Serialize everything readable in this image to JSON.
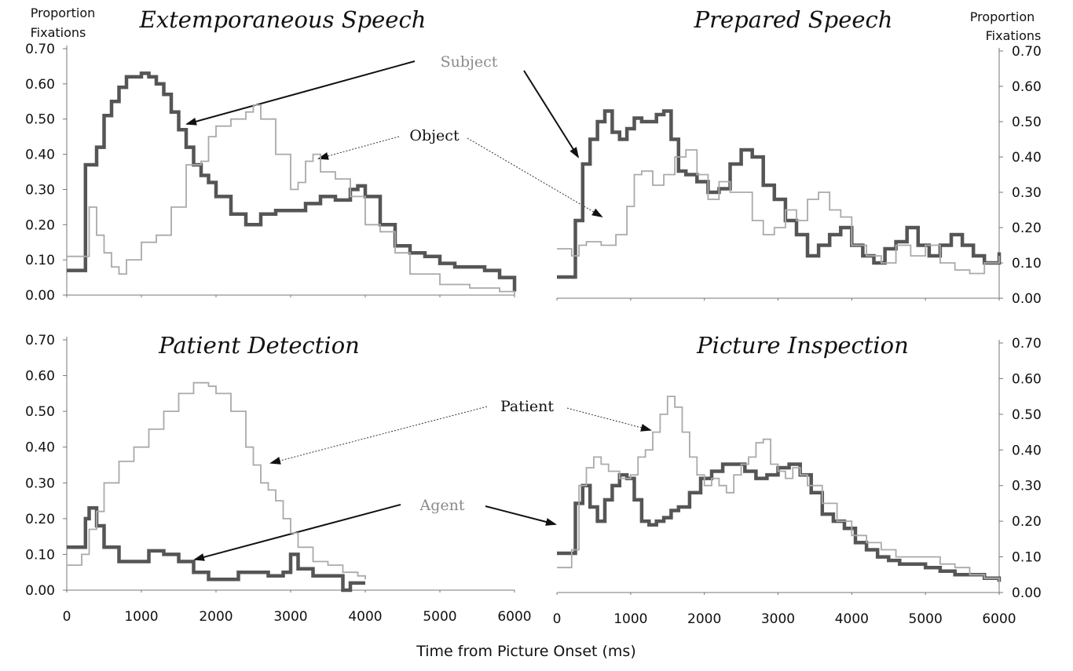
{
  "chart_data": {
    "type": "line",
    "xlabel": "Time from Picture Onset (ms)",
    "ylabel": "Proportion Fixations",
    "ylim": [
      0,
      0.7
    ],
    "yticks": [
      "0.00",
      "0.10",
      "0.20",
      "0.30",
      "0.40",
      "0.50",
      "0.60",
      "0.70"
    ],
    "xticks": [
      "0",
      "1000",
      "2000",
      "3000",
      "4000",
      "5000",
      "6000"
    ],
    "panels": [
      {
        "id": "extemporaneous",
        "title": "Extemporaneous Speech",
        "xlim": [
          0,
          6000
        ],
        "annotations": [
          "Subject",
          "Object"
        ],
        "series": [
          {
            "name": "Subject",
            "color": "#555555",
            "x": [
              0,
              150,
              250,
              400,
              500,
              600,
              700,
              800,
              900,
              1000,
              1100,
              1200,
              1300,
              1400,
              1500,
              1600,
              1700,
              1800,
              1900,
              2000,
              2200,
              2400,
              2600,
              2800,
              3000,
              3200,
              3400,
              3600,
              3800,
              3900,
              4000,
              4200,
              4400,
              4600,
              4800,
              5000,
              5200,
              5400,
              5600,
              5800,
              6000
            ],
            "y": [
              0.07,
              0.07,
              0.37,
              0.42,
              0.51,
              0.55,
              0.59,
              0.62,
              0.62,
              0.63,
              0.62,
              0.6,
              0.57,
              0.52,
              0.47,
              0.42,
              0.37,
              0.34,
              0.32,
              0.28,
              0.23,
              0.2,
              0.23,
              0.24,
              0.24,
              0.26,
              0.28,
              0.27,
              0.3,
              0.31,
              0.28,
              0.2,
              0.14,
              0.12,
              0.11,
              0.09,
              0.08,
              0.08,
              0.07,
              0.05,
              0.01
            ]
          },
          {
            "name": "Object",
            "color": "#aaaaaa",
            "x": [
              0,
              200,
              300,
              400,
              500,
              600,
              700,
              800,
              1000,
              1200,
              1400,
              1600,
              1800,
              1900,
              2000,
              2200,
              2400,
              2500,
              2600,
              2800,
              3000,
              3100,
              3200,
              3300,
              3400,
              3600,
              3800,
              4000,
              4200,
              4400,
              4600,
              5000,
              5400,
              5800,
              6000
            ],
            "y": [
              0.11,
              0.11,
              0.25,
              0.17,
              0.12,
              0.08,
              0.06,
              0.1,
              0.15,
              0.17,
              0.25,
              0.37,
              0.38,
              0.45,
              0.48,
              0.5,
              0.52,
              0.54,
              0.5,
              0.4,
              0.3,
              0.32,
              0.38,
              0.4,
              0.35,
              0.33,
              0.28,
              0.2,
              0.18,
              0.12,
              0.06,
              0.03,
              0.02,
              0.01,
              0.0
            ]
          }
        ]
      },
      {
        "id": "prepared",
        "title": "Prepared Speech",
        "xlim": [
          0,
          6000
        ],
        "annotations": [],
        "series": [
          {
            "name": "Subject",
            "color": "#555555",
            "x": [
              0,
              150,
              250,
              350,
              450,
              550,
              650,
              750,
              850,
              950,
              1050,
              1150,
              1250,
              1350,
              1450,
              1550,
              1650,
              1750,
              1900,
              2050,
              2200,
              2350,
              2500,
              2650,
              2800,
              2950,
              3100,
              3250,
              3400,
              3550,
              3700,
              3850,
              4000,
              4150,
              4300,
              4450,
              4600,
              4750,
              4900,
              5050,
              5200,
              5350,
              5500,
              5650,
              5800,
              6000
            ],
            "y": [
              0.06,
              0.06,
              0.22,
              0.38,
              0.45,
              0.5,
              0.53,
              0.47,
              0.45,
              0.48,
              0.51,
              0.5,
              0.5,
              0.52,
              0.53,
              0.45,
              0.36,
              0.35,
              0.33,
              0.3,
              0.31,
              0.38,
              0.42,
              0.4,
              0.32,
              0.28,
              0.22,
              0.18,
              0.12,
              0.15,
              0.18,
              0.2,
              0.15,
              0.12,
              0.1,
              0.14,
              0.16,
              0.2,
              0.15,
              0.12,
              0.15,
              0.18,
              0.15,
              0.12,
              0.1,
              0.13
            ]
          },
          {
            "name": "Object",
            "color": "#aaaaaa",
            "x": [
              0,
              100,
              200,
              300,
              400,
              600,
              800,
              950,
              1050,
              1150,
              1300,
              1450,
              1600,
              1750,
              1900,
              2050,
              2200,
              2350,
              2500,
              2650,
              2800,
              2950,
              3100,
              3250,
              3400,
              3550,
              3700,
              3850,
              4000,
              4200,
              4400,
              4600,
              4800,
              5000,
              5200,
              5400,
              5600,
              5800,
              6000
            ],
            "y": [
              0.14,
              0.14,
              0.12,
              0.15,
              0.16,
              0.15,
              0.18,
              0.26,
              0.35,
              0.36,
              0.32,
              0.35,
              0.4,
              0.42,
              0.35,
              0.28,
              0.33,
              0.3,
              0.3,
              0.22,
              0.18,
              0.2,
              0.25,
              0.22,
              0.28,
              0.3,
              0.25,
              0.23,
              0.15,
              0.12,
              0.1,
              0.15,
              0.12,
              0.15,
              0.1,
              0.08,
              0.07,
              0.1,
              0.12
            ]
          }
        ]
      },
      {
        "id": "patient-detection",
        "title": "Patient Detection",
        "xlim": [
          0,
          6000
        ],
        "annotations": [
          "Patient",
          "Agent"
        ],
        "series": [
          {
            "name": "Agent",
            "color": "#555555",
            "x": [
              0,
              150,
              250,
              300,
              400,
              500,
              700,
              900,
              1100,
              1300,
              1500,
              1700,
              1900,
              2100,
              2300,
              2500,
              2700,
              2900,
              3000,
              3100,
              3300,
              3500,
              3700,
              3800,
              4000
            ],
            "y": [
              0.12,
              0.12,
              0.2,
              0.23,
              0.18,
              0.12,
              0.08,
              0.08,
              0.11,
              0.1,
              0.08,
              0.05,
              0.03,
              0.03,
              0.05,
              0.05,
              0.04,
              0.05,
              0.1,
              0.06,
              0.04,
              0.04,
              0.0,
              0.02,
              0.02
            ]
          },
          {
            "name": "Patient",
            "color": "#aaaaaa",
            "x": [
              0,
              100,
              200,
              300,
              400,
              500,
              700,
              900,
              1100,
              1300,
              1500,
              1700,
              1800,
              1900,
              2000,
              2200,
              2400,
              2500,
              2600,
              2700,
              2800,
              2900,
              3000,
              3100,
              3300,
              3500,
              3700,
              3900,
              4000
            ],
            "y": [
              0.07,
              0.07,
              0.1,
              0.17,
              0.22,
              0.3,
              0.36,
              0.4,
              0.45,
              0.5,
              0.55,
              0.58,
              0.58,
              0.57,
              0.55,
              0.5,
              0.4,
              0.35,
              0.3,
              0.28,
              0.25,
              0.2,
              0.16,
              0.12,
              0.08,
              0.07,
              0.05,
              0.04,
              0.03
            ]
          }
        ]
      },
      {
        "id": "picture-inspection",
        "title": "Picture Inspection",
        "xlim": [
          0,
          6000
        ],
        "annotations": [],
        "series": [
          {
            "name": "Agent",
            "color": "#555555",
            "x": [
              0,
              150,
              250,
              350,
              450,
              550,
              650,
              750,
              850,
              950,
              1050,
              1150,
              1250,
              1350,
              1450,
              1550,
              1650,
              1800,
              1950,
              2100,
              2250,
              2400,
              2550,
              2700,
              2850,
              3000,
              3150,
              3300,
              3450,
              3600,
              3750,
              3900,
              4050,
              4200,
              4350,
              4500,
              4650,
              4800,
              5000,
              5200,
              5400,
              5600,
              5800,
              6000
            ],
            "y": [
              0.11,
              0.11,
              0.25,
              0.3,
              0.24,
              0.2,
              0.26,
              0.3,
              0.33,
              0.32,
              0.26,
              0.2,
              0.19,
              0.2,
              0.21,
              0.23,
              0.24,
              0.28,
              0.32,
              0.34,
              0.36,
              0.36,
              0.34,
              0.32,
              0.33,
              0.35,
              0.36,
              0.33,
              0.28,
              0.22,
              0.2,
              0.18,
              0.14,
              0.12,
              0.1,
              0.09,
              0.08,
              0.08,
              0.07,
              0.06,
              0.05,
              0.05,
              0.04,
              0.03
            ]
          },
          {
            "name": "Patient",
            "color": "#aaaaaa",
            "x": [
              0,
              100,
              200,
              300,
              400,
              500,
              600,
              700,
              850,
              1000,
              1100,
              1200,
              1300,
              1400,
              1500,
              1600,
              1700,
              1800,
              1900,
              2000,
              2100,
              2200,
              2300,
              2400,
              2500,
              2600,
              2700,
              2800,
              2900,
              3000,
              3100,
              3200,
              3300,
              3400,
              3600,
              3800,
              4000,
              4200,
              4400,
              4600,
              4800,
              5000,
              5200,
              5400,
              5600,
              5800,
              6000
            ],
            "y": [
              0.07,
              0.07,
              0.12,
              0.3,
              0.35,
              0.38,
              0.36,
              0.34,
              0.32,
              0.33,
              0.38,
              0.4,
              0.45,
              0.5,
              0.55,
              0.52,
              0.45,
              0.38,
              0.33,
              0.3,
              0.32,
              0.3,
              0.28,
              0.33,
              0.36,
              0.38,
              0.42,
              0.43,
              0.36,
              0.34,
              0.32,
              0.35,
              0.33,
              0.3,
              0.25,
              0.2,
              0.16,
              0.14,
              0.12,
              0.1,
              0.1,
              0.1,
              0.08,
              0.07,
              0.05,
              0.04,
              0.03
            ]
          }
        ]
      }
    ]
  }
}
